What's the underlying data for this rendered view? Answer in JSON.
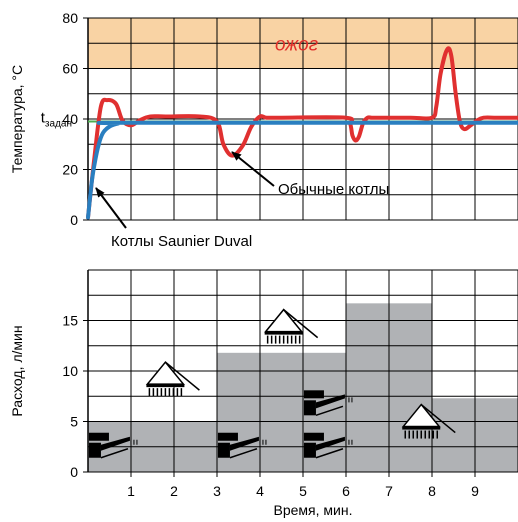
{
  "chart_data": [
    {
      "type": "line",
      "ylabel": "Температура, °C",
      "ylim": [
        0,
        80
      ],
      "yticks": [
        "0",
        "20",
        "40",
        "60",
        "80"
      ],
      "xlim": [
        0,
        10
      ],
      "grid": true,
      "zone": {
        "label": "ожог",
        "from": 60,
        "to": 80,
        "color": "#f9d3a4"
      },
      "setpoint": {
        "label": "t",
        "sub": "задан",
        "value": 39,
        "color": "#4caf50"
      },
      "series": [
        {
          "name": "Обычные котлы",
          "color": "#e03030",
          "x": [
            0,
            0.15,
            0.3,
            0.45,
            0.65,
            0.8,
            1.0,
            1.2,
            1.45,
            1.8,
            2.6,
            3.0,
            3.15,
            3.35,
            3.6,
            3.8,
            4.0,
            4.15,
            4.5,
            6.0,
            6.1,
            6.15,
            6.22,
            6.3,
            6.4,
            6.5,
            6.6,
            6.8,
            7.5,
            8.0,
            8.1,
            8.2,
            8.35,
            8.45,
            8.55,
            8.65,
            8.75,
            8.9,
            9.05,
            9.2,
            9.5,
            10.0
          ],
          "y": [
            1,
            25,
            45,
            47.5,
            46,
            39.5,
            37.5,
            39.5,
            41,
            41,
            41,
            39,
            30,
            25.5,
            29.5,
            37,
            41,
            40.5,
            40.5,
            40.5,
            38,
            33.5,
            31.5,
            33,
            38.5,
            40.5,
            40.5,
            40.5,
            40.5,
            40.5,
            45,
            58,
            67.5,
            65,
            50,
            39,
            36,
            37.5,
            39.5,
            40.5,
            40.5,
            40.5
          ]
        },
        {
          "name": "Котлы Saunier Duval",
          "color": "#2a7fc0",
          "x": [
            0,
            0.08,
            0.15,
            0.25,
            0.35,
            0.5,
            0.7,
            1.0,
            10.0
          ],
          "y": [
            1,
            14,
            22,
            30,
            34.5,
            37,
            38.2,
            38.5,
            38.5
          ]
        }
      ],
      "annotations": [
        "Обычные котлы",
        "Котлы Saunier Duval"
      ]
    },
    {
      "type": "area",
      "xlabel": "Время, мин.",
      "ylabel": "Расход, л/мин",
      "ylim": [
        0,
        20
      ],
      "yticks": [
        "0",
        "5",
        "10",
        "15"
      ],
      "xlim": [
        0,
        10
      ],
      "xticks": [
        "1",
        "2",
        "3",
        "4",
        "5",
        "6",
        "7",
        "8",
        "9"
      ],
      "grid": true,
      "fill": "#b0b2b5",
      "steps": [
        {
          "x_from": 0,
          "x_to": 3,
          "y": 5
        },
        {
          "x_from": 3,
          "x_to": 6,
          "y": 11.8
        },
        {
          "x_from": 6,
          "x_to": 8,
          "y": 16.7
        },
        {
          "x_from": 8,
          "x_to": 10,
          "y": 7.3
        }
      ],
      "icons": [
        {
          "name": "faucet-icon",
          "x": 0.65,
          "y": 2.6
        },
        {
          "name": "shower-icon",
          "x": 1.8,
          "y": 8.7
        },
        {
          "name": "faucet-icon",
          "x": 3.65,
          "y": 2.6
        },
        {
          "name": "shower-icon",
          "x": 4.55,
          "y": 13.9
        },
        {
          "name": "faucet-icon",
          "x": 5.65,
          "y": 6.8
        },
        {
          "name": "faucet-icon",
          "x": 5.65,
          "y": 2.6
        },
        {
          "name": "shower-icon",
          "x": 7.75,
          "y": 4.5
        }
      ]
    }
  ]
}
